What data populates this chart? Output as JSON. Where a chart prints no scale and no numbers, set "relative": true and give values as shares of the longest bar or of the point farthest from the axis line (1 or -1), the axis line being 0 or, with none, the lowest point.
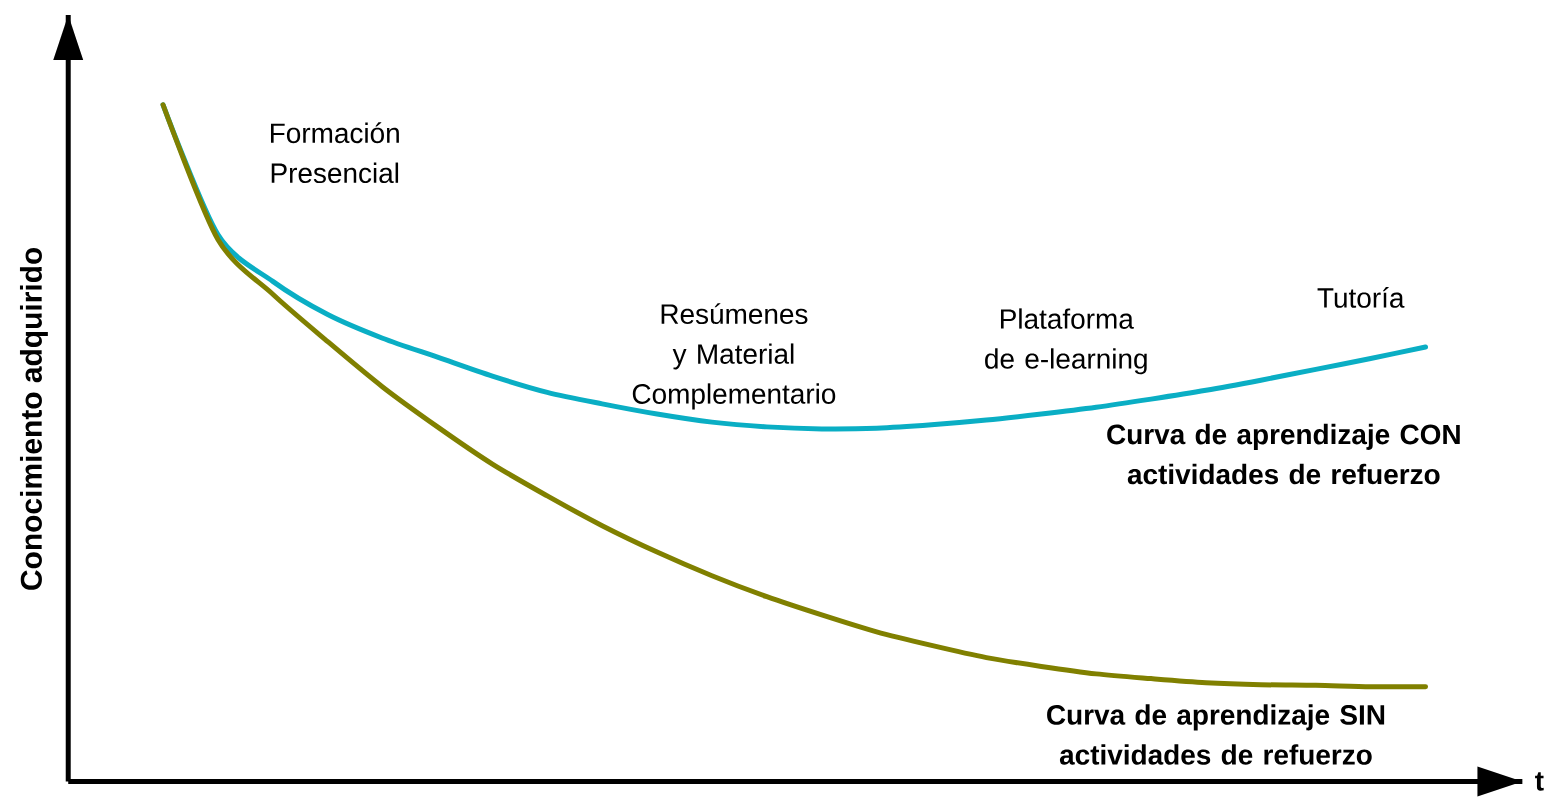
{
  "chart_data": {
    "type": "line",
    "relative": true,
    "xlabel": "t",
    "ylabel": "Conocimiento adquirido",
    "categories": [
      null,
      null,
      null,
      null,
      null,
      null,
      null,
      null,
      null,
      null,
      null,
      null,
      null,
      null,
      null,
      null,
      null,
      null,
      null,
      null,
      null,
      null,
      null,
      null
    ],
    "series": [
      {
        "name": "Curva de aprendizaje CON actividades de refuerzo",
        "color": "#0aaec4",
        "values": [
          1.0,
          0.808,
          0.739,
          0.69,
          0.655,
          0.627,
          0.599,
          0.575,
          0.558,
          0.543,
          0.531,
          0.524,
          0.521,
          0.522,
          0.527,
          0.534,
          0.543,
          0.553,
          0.565,
          0.578,
          0.593,
          0.609,
          0.625,
          0.642
        ]
      },
      {
        "name": "Curva de aprendizaje SIN actividades de refuerzo",
        "color": "#808000",
        "values": [
          1.0,
          0.801,
          0.72,
          0.65,
          0.583,
          0.524,
          0.469,
          0.422,
          0.378,
          0.339,
          0.304,
          0.273,
          0.246,
          0.221,
          0.201,
          0.183,
          0.17,
          0.159,
          0.152,
          0.146,
          0.143,
          0.142,
          0.14,
          0.14
        ]
      }
    ],
    "annotations": [
      "Formación Presencial",
      "Resúmenes y Material Complementario",
      "Plataforma de e-learning",
      "Tutoría"
    ]
  }
}
